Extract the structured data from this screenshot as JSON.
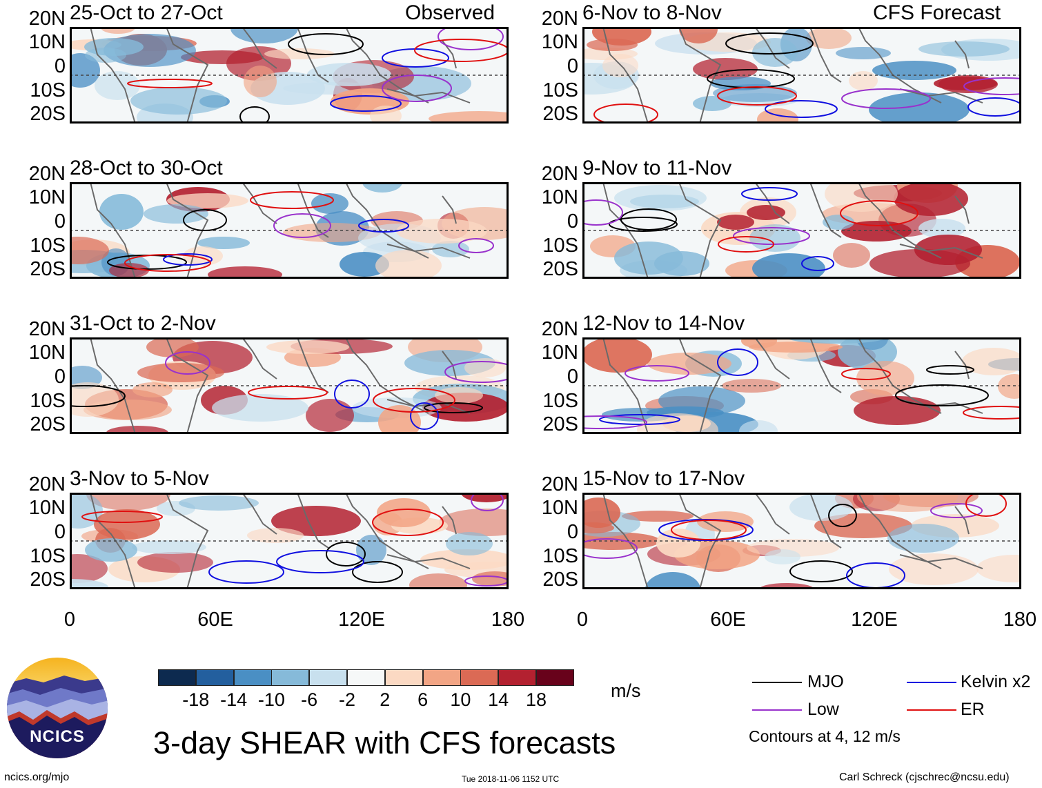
{
  "panels_observed_label": "Observed",
  "panels_forecast_label": "CFS Forecast",
  "panels": [
    {
      "title": "25-Oct to 27-Oct",
      "column": "observed"
    },
    {
      "title": "28-Oct to 30-Oct",
      "column": "observed"
    },
    {
      "title": "31-Oct to 2-Nov",
      "column": "observed"
    },
    {
      "title": "3-Nov to 5-Nov",
      "column": "observed"
    },
    {
      "title": "6-Nov to 8-Nov",
      "column": "forecast"
    },
    {
      "title": "9-Nov to 11-Nov",
      "column": "forecast"
    },
    {
      "title": "12-Nov to 14-Nov",
      "column": "forecast"
    },
    {
      "title": "15-Nov to 17-Nov",
      "column": "forecast"
    }
  ],
  "lat_labels": [
    "20N",
    "10N",
    "0",
    "10S",
    "20S"
  ],
  "lon_labels": [
    "0",
    "60E",
    "120E",
    "180"
  ],
  "colorbar": {
    "unit": "m/s",
    "colors": [
      "#0d2a4f",
      "#235f9e",
      "#4a8fc4",
      "#86bad9",
      "#c8e0ee",
      "#f6f8f8",
      "#fbd9c3",
      "#f2a585",
      "#db6a55",
      "#b32130",
      "#68021b"
    ],
    "labels": [
      "-18",
      "-14",
      "-10",
      "-6",
      "-2",
      "2",
      "6",
      "10",
      "14",
      "18"
    ]
  },
  "legend": {
    "items": [
      {
        "label": "MJO",
        "color": "#000000"
      },
      {
        "label": "Kelvin x2",
        "color": "#1010e0"
      },
      {
        "label": "Low",
        "color": "#9932cc"
      },
      {
        "label": "ER",
        "color": "#e01010"
      }
    ],
    "note": "Contours at 4, 12 m/s"
  },
  "main_title": "3-day SHEAR with CFS forecasts",
  "logo_text": "NCICS",
  "footer": {
    "left": "ncics.org/mjo",
    "center": "Tue 2018-11-06 1152 UTC",
    "right": "Carl Schreck (cjschrec@ncsu.edu)"
  }
}
